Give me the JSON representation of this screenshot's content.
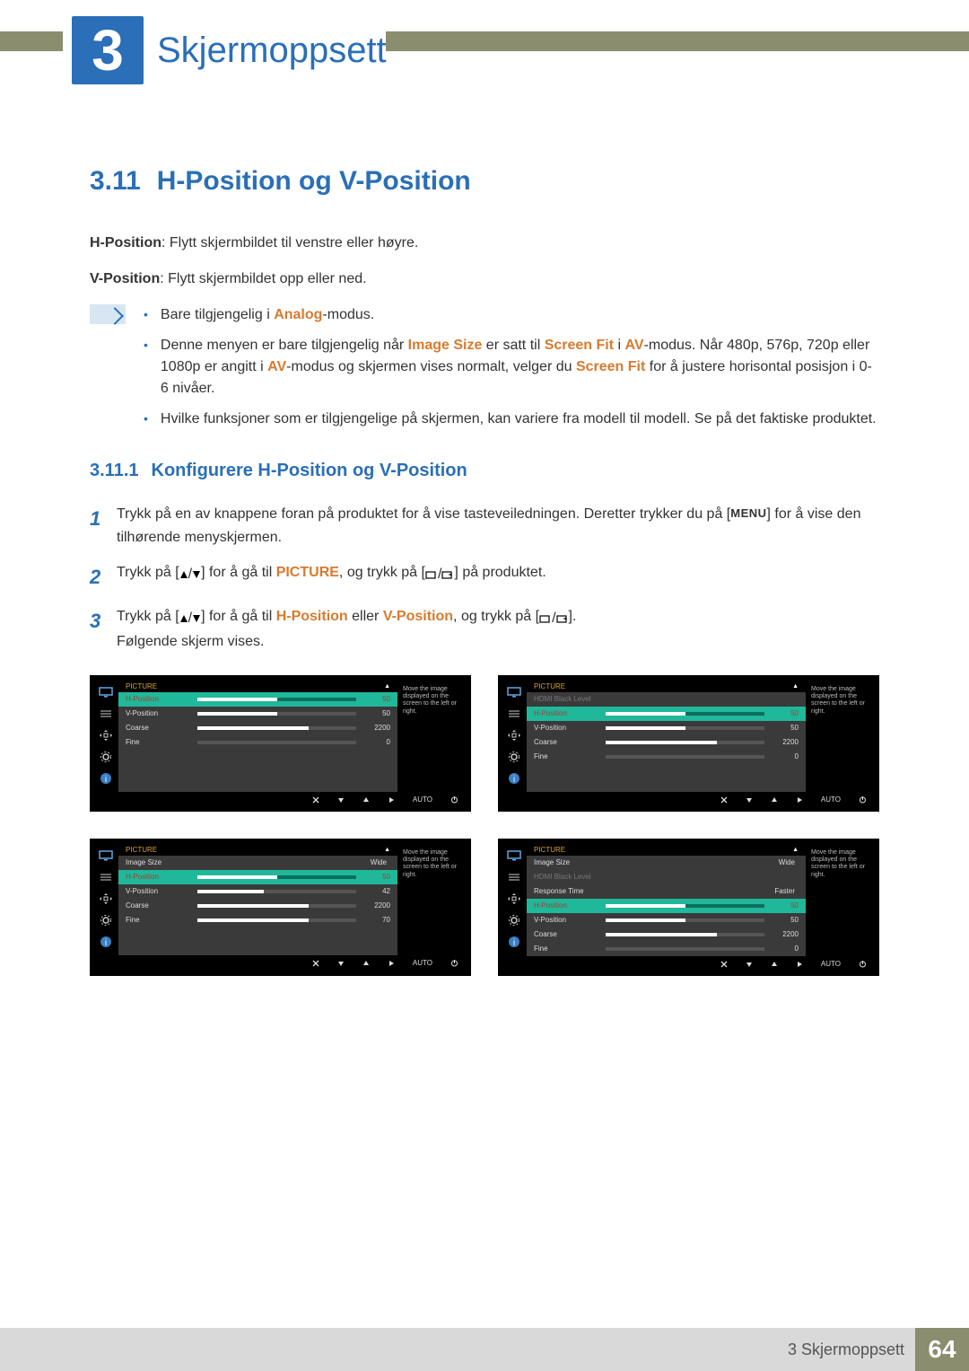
{
  "colors": {
    "accent_blue": "#2a6fb7",
    "accent_orange": "#d97a2e",
    "olive": "#8a8d6e",
    "osd_highlight": "#1fb89a",
    "osd_header_text": "#d9a23a",
    "osd_bg": "#000000",
    "osd_panel": "#3a3a3a"
  },
  "chapter": {
    "number": "3",
    "title": "Skjermoppsett"
  },
  "section": {
    "number": "3.11",
    "title": "H-Position og V-Position"
  },
  "intro": {
    "h_label": "H-Position",
    "h_text": ": Flytt skjermbildet til venstre eller høyre.",
    "v_label": "V-Position",
    "v_text": ": Flytt skjermbildet opp eller ned."
  },
  "notes": [
    {
      "pre": "Bare tilgjengelig i ",
      "em": "Analog",
      "post": "-modus."
    },
    {
      "html": "Denne menyen er bare tilgjengelig når <span class='orange'>Image Size</span> er satt til <span class='orange'>Screen Fit</span> i <span class='orange'>AV</span>-modus. Når 480p, 576p, 720p eller 1080p er angitt i <span class='orange'>AV</span>-modus og skjermen vises normalt, velger du <span class='orange'>Screen Fit</span> for å justere horisontal posisjon i 0-6 nivåer."
    },
    {
      "text": "Hvilke funksjoner som er tilgjengelige på skjermen, kan variere fra modell til modell. Se på det faktiske produktet."
    }
  ],
  "subsection": {
    "number": "3.11.1",
    "title": "Konfigurere H-Position og V-Position"
  },
  "steps": [
    {
      "n": "1",
      "html": "Trykk på en av knappene foran på produktet for å vise tasteveiledningen. Deretter trykker du på [<span class='menu-label'>MENU</span>] for å vise den tilhørende menyskjermen."
    },
    {
      "n": "2",
      "html": "Trykk på [<span class='btn-icons'><svg width='10' height='10'><polygon points='5,1 9,9 1,9' fill='#000'/></svg>/<svg width='10' height='10'><polygon points='1,1 9,1 5,9' fill='#000'/></svg></span>] for å gå til <span class='orange'>PICTURE</span>, og trykk på [<span class='btn-icons'><svg width='14' height='10'><rect x='1' y='2' width='10' height='7' fill='none' stroke='#000' stroke-width='1.2'/></svg>/<svg width='14' height='10'><rect x='1' y='2' width='10' height='7' fill='none' stroke='#000' stroke-width='1.2'/><path d='M8 5 l3 0 l-1 -1 M11 5 l-1 1' stroke='#000' stroke-width='1' fill='none'/></svg></span>] på produktet."
    },
    {
      "n": "3",
      "html": "Trykk på [<span class='btn-icons'><svg width='10' height='10'><polygon points='5,1 9,9 1,9' fill='#000'/></svg>/<svg width='10' height='10'><polygon points='1,1 9,1 5,9' fill='#000'/></svg></span>] for å gå til <span class='orange'>H-Position</span> eller <span class='orange'>V-Position</span>, og trykk på [<span class='btn-icons'><svg width='14' height='10'><rect x='1' y='2' width='10' height='7' fill='none' stroke='#000' stroke-width='1.2'/></svg>/<svg width='14' height='10'><rect x='1' y='2' width='10' height='7' fill='none' stroke='#000' stroke-width='1.2'/><path d='M8 5 l3 0 l-1 -1 M11 5 l-1 1' stroke='#000' stroke-width='1' fill='none'/></svg></span>].<br>Følgende skjerm vises."
    }
  ],
  "osd_tip": "Move the image displayed on the screen to the left or right.",
  "osd_header": "PICTURE",
  "osd_footer": {
    "auto": "AUTO"
  },
  "panels": [
    {
      "rows": [
        {
          "label": "H-Position",
          "val": "50",
          "bar": 50,
          "highlight": true
        },
        {
          "label": "V-Position",
          "val": "50",
          "bar": 50
        },
        {
          "label": "Coarse",
          "val": "2200",
          "bar": 70
        },
        {
          "label": "Fine",
          "val": "0",
          "bar": 0
        }
      ]
    },
    {
      "rows": [
        {
          "label": "HDMI Black Level",
          "txtval": "",
          "dim": true
        },
        {
          "label": "H-Position",
          "val": "50",
          "bar": 50,
          "highlight": true
        },
        {
          "label": "V-Position",
          "val": "50",
          "bar": 50
        },
        {
          "label": "Coarse",
          "val": "2200",
          "bar": 70
        },
        {
          "label": "Fine",
          "val": "0",
          "bar": 0
        }
      ]
    },
    {
      "rows": [
        {
          "label": "Image Size",
          "txtval": "Wide"
        },
        {
          "label": "H-Position",
          "val": "50",
          "bar": 50,
          "highlight": true
        },
        {
          "label": "V-Position",
          "val": "42",
          "bar": 42
        },
        {
          "label": "Coarse",
          "val": "2200",
          "bar": 70
        },
        {
          "label": "Fine",
          "val": "70",
          "bar": 70
        }
      ]
    },
    {
      "rows": [
        {
          "label": "Image Size",
          "txtval": "Wide"
        },
        {
          "label": "HDMI Black Level",
          "txtval": "",
          "dim": true
        },
        {
          "label": "Response Time",
          "txtval": "Faster"
        },
        {
          "label": "H-Position",
          "val": "50",
          "bar": 50,
          "highlight": true
        },
        {
          "label": "V-Position",
          "val": "50",
          "bar": 50
        },
        {
          "label": "Coarse",
          "val": "2200",
          "bar": 70
        },
        {
          "label": "Fine",
          "val": "0",
          "bar": 0
        }
      ]
    }
  ],
  "footer": {
    "label": "3 Skjermoppsett",
    "page": "64"
  }
}
